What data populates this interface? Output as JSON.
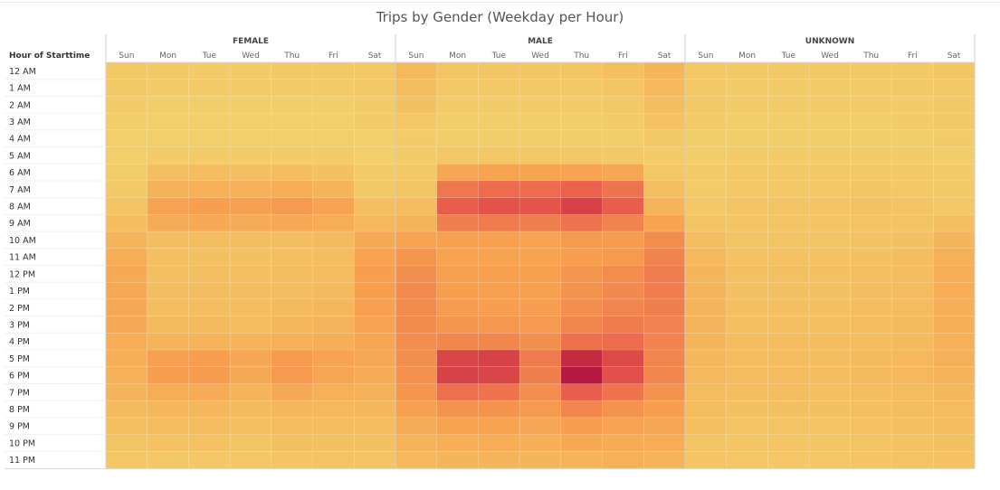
{
  "chart_data": {
    "type": "heatmap",
    "title": "Trips by Gender (Weekday per Hour)",
    "row_header": "Hour of Starttime",
    "groups": [
      "FEMALE",
      "MALE",
      "UNKNOWN"
    ],
    "days": [
      "Sun",
      "Mon",
      "Tue",
      "Wed",
      "Thu",
      "Fri",
      "Sat"
    ],
    "hours": [
      "12 AM",
      "1 AM",
      "2 AM",
      "3 AM",
      "4 AM",
      "5 AM",
      "6 AM",
      "7 AM",
      "8 AM",
      "9 AM",
      "10 AM",
      "11 AM",
      "12 PM",
      "1 PM",
      "2 PM",
      "3 PM",
      "4 PM",
      "5 PM",
      "6 PM",
      "7 PM",
      "8 PM",
      "9 PM",
      "10 PM",
      "11 PM"
    ],
    "color_scale": {
      "low": "#f2d26c",
      "mid": "#f7a04f",
      "high": "#e8594c",
      "max": "#b5183e"
    },
    "intensity": {
      "FEMALE": [
        [
          0.07,
          0.06,
          0.05,
          0.05,
          0.06,
          0.07,
          0.08
        ],
        [
          0.06,
          0.04,
          0.04,
          0.04,
          0.04,
          0.05,
          0.06
        ],
        [
          0.05,
          0.03,
          0.03,
          0.03,
          0.03,
          0.03,
          0.05
        ],
        [
          0.03,
          0.02,
          0.02,
          0.02,
          0.02,
          0.02,
          0.04
        ],
        [
          0.02,
          0.02,
          0.02,
          0.02,
          0.02,
          0.02,
          0.02
        ],
        [
          0.02,
          0.04,
          0.04,
          0.04,
          0.04,
          0.04,
          0.02
        ],
        [
          0.03,
          0.13,
          0.14,
          0.13,
          0.14,
          0.12,
          0.05
        ],
        [
          0.06,
          0.23,
          0.24,
          0.23,
          0.25,
          0.22,
          0.07
        ],
        [
          0.1,
          0.33,
          0.36,
          0.35,
          0.38,
          0.33,
          0.13
        ],
        [
          0.14,
          0.27,
          0.28,
          0.27,
          0.28,
          0.26,
          0.18
        ],
        [
          0.21,
          0.15,
          0.14,
          0.14,
          0.15,
          0.17,
          0.28
        ],
        [
          0.26,
          0.13,
          0.12,
          0.12,
          0.13,
          0.15,
          0.33
        ],
        [
          0.28,
          0.13,
          0.13,
          0.13,
          0.14,
          0.16,
          0.36
        ],
        [
          0.29,
          0.14,
          0.14,
          0.14,
          0.15,
          0.17,
          0.36
        ],
        [
          0.29,
          0.15,
          0.15,
          0.15,
          0.17,
          0.19,
          0.35
        ],
        [
          0.28,
          0.17,
          0.17,
          0.16,
          0.19,
          0.21,
          0.33
        ],
        [
          0.26,
          0.22,
          0.22,
          0.21,
          0.24,
          0.25,
          0.31
        ],
        [
          0.25,
          0.34,
          0.36,
          0.3,
          0.37,
          0.33,
          0.29
        ],
        [
          0.24,
          0.36,
          0.37,
          0.29,
          0.38,
          0.31,
          0.27
        ],
        [
          0.21,
          0.26,
          0.27,
          0.22,
          0.28,
          0.24,
          0.23
        ],
        [
          0.17,
          0.19,
          0.19,
          0.17,
          0.19,
          0.18,
          0.19
        ],
        [
          0.13,
          0.14,
          0.15,
          0.13,
          0.15,
          0.14,
          0.15
        ],
        [
          0.1,
          0.11,
          0.11,
          0.1,
          0.12,
          0.12,
          0.12
        ],
        [
          0.08,
          0.08,
          0.08,
          0.08,
          0.09,
          0.1,
          0.1
        ]
      ],
      "MALE": [
        [
          0.18,
          0.1,
          0.09,
          0.09,
          0.1,
          0.13,
          0.2
        ],
        [
          0.15,
          0.07,
          0.06,
          0.06,
          0.07,
          0.09,
          0.18
        ],
        [
          0.12,
          0.05,
          0.05,
          0.05,
          0.05,
          0.07,
          0.15
        ],
        [
          0.08,
          0.03,
          0.03,
          0.03,
          0.03,
          0.04,
          0.11
        ],
        [
          0.05,
          0.03,
          0.03,
          0.03,
          0.03,
          0.03,
          0.06
        ],
        [
          0.04,
          0.08,
          0.08,
          0.08,
          0.08,
          0.07,
          0.05
        ],
        [
          0.06,
          0.3,
          0.32,
          0.32,
          0.33,
          0.3,
          0.08
        ],
        [
          0.1,
          0.56,
          0.62,
          0.62,
          0.68,
          0.58,
          0.13
        ],
        [
          0.16,
          0.7,
          0.75,
          0.74,
          0.82,
          0.7,
          0.22
        ],
        [
          0.22,
          0.52,
          0.54,
          0.52,
          0.58,
          0.5,
          0.32
        ],
        [
          0.33,
          0.35,
          0.35,
          0.33,
          0.38,
          0.37,
          0.45
        ],
        [
          0.4,
          0.33,
          0.32,
          0.32,
          0.36,
          0.38,
          0.5
        ],
        [
          0.44,
          0.35,
          0.34,
          0.34,
          0.4,
          0.45,
          0.53
        ],
        [
          0.46,
          0.36,
          0.35,
          0.35,
          0.42,
          0.47,
          0.53
        ],
        [
          0.46,
          0.37,
          0.36,
          0.36,
          0.44,
          0.49,
          0.52
        ],
        [
          0.46,
          0.4,
          0.39,
          0.38,
          0.48,
          0.54,
          0.51
        ],
        [
          0.45,
          0.48,
          0.48,
          0.44,
          0.6,
          0.62,
          0.5
        ],
        [
          0.44,
          0.8,
          0.82,
          0.55,
          0.92,
          0.78,
          0.49
        ],
        [
          0.43,
          0.82,
          0.8,
          0.52,
          1.0,
          0.76,
          0.48
        ],
        [
          0.4,
          0.6,
          0.58,
          0.45,
          0.7,
          0.58,
          0.42
        ],
        [
          0.34,
          0.42,
          0.42,
          0.38,
          0.48,
          0.42,
          0.36
        ],
        [
          0.27,
          0.32,
          0.32,
          0.3,
          0.36,
          0.33,
          0.3
        ],
        [
          0.22,
          0.25,
          0.26,
          0.25,
          0.28,
          0.27,
          0.26
        ],
        [
          0.18,
          0.2,
          0.2,
          0.2,
          0.22,
          0.24,
          0.22
        ]
      ],
      "UNKNOWN": [
        [
          0.08,
          0.06,
          0.06,
          0.06,
          0.06,
          0.07,
          0.09
        ],
        [
          0.07,
          0.05,
          0.05,
          0.05,
          0.05,
          0.06,
          0.08
        ],
        [
          0.06,
          0.04,
          0.04,
          0.04,
          0.04,
          0.05,
          0.07
        ],
        [
          0.05,
          0.03,
          0.03,
          0.03,
          0.03,
          0.04,
          0.06
        ],
        [
          0.03,
          0.03,
          0.03,
          0.03,
          0.03,
          0.03,
          0.04
        ],
        [
          0.03,
          0.04,
          0.04,
          0.04,
          0.04,
          0.04,
          0.03
        ],
        [
          0.04,
          0.06,
          0.06,
          0.06,
          0.06,
          0.06,
          0.04
        ],
        [
          0.05,
          0.08,
          0.08,
          0.08,
          0.09,
          0.08,
          0.06
        ],
        [
          0.07,
          0.1,
          0.1,
          0.1,
          0.11,
          0.1,
          0.08
        ],
        [
          0.1,
          0.09,
          0.09,
          0.09,
          0.1,
          0.1,
          0.13
        ],
        [
          0.14,
          0.1,
          0.1,
          0.1,
          0.11,
          0.12,
          0.2
        ],
        [
          0.18,
          0.11,
          0.11,
          0.11,
          0.12,
          0.14,
          0.24
        ],
        [
          0.2,
          0.12,
          0.12,
          0.12,
          0.13,
          0.15,
          0.26
        ],
        [
          0.21,
          0.12,
          0.12,
          0.12,
          0.14,
          0.16,
          0.26
        ],
        [
          0.21,
          0.13,
          0.13,
          0.13,
          0.14,
          0.16,
          0.25
        ],
        [
          0.21,
          0.13,
          0.13,
          0.13,
          0.15,
          0.17,
          0.25
        ],
        [
          0.2,
          0.14,
          0.14,
          0.14,
          0.15,
          0.17,
          0.24
        ],
        [
          0.19,
          0.16,
          0.16,
          0.15,
          0.17,
          0.18,
          0.23
        ],
        [
          0.18,
          0.16,
          0.16,
          0.15,
          0.17,
          0.18,
          0.22
        ],
        [
          0.16,
          0.14,
          0.14,
          0.13,
          0.15,
          0.16,
          0.19
        ],
        [
          0.14,
          0.12,
          0.12,
          0.12,
          0.13,
          0.14,
          0.16
        ],
        [
          0.12,
          0.1,
          0.1,
          0.1,
          0.11,
          0.12,
          0.14
        ],
        [
          0.1,
          0.09,
          0.09,
          0.09,
          0.1,
          0.11,
          0.12
        ],
        [
          0.09,
          0.08,
          0.08,
          0.08,
          0.09,
          0.1,
          0.11
        ]
      ]
    }
  }
}
